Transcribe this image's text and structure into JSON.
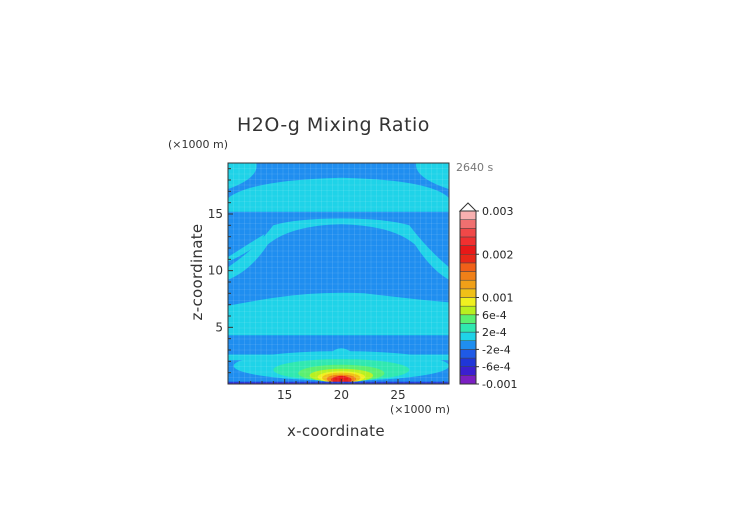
{
  "chart_data": {
    "type": "heatmap",
    "title": "H2O-g Mixing Ratio",
    "time_label": "2640 s",
    "xlabel": "x-coordinate",
    "ylabel": "z-coordinate",
    "x_unit": "(×1000 m)",
    "y_unit": "(×1000 m)",
    "xlim": [
      10,
      29.5
    ],
    "ylim": [
      0,
      19.5
    ],
    "x_ticks": [
      15,
      20,
      25
    ],
    "y_ticks": [
      5,
      10,
      15
    ],
    "colorbar": {
      "levels": [
        -0.001,
        -0.0008,
        -0.0006,
        -0.0004,
        -0.0002,
        0,
        0.0002,
        0.0004,
        0.0006,
        0.0008,
        0.001,
        0.0012,
        0.0014,
        0.0016,
        0.0018,
        0.002,
        0.0022,
        0.0024,
        0.0026,
        0.0028,
        0.003
      ],
      "colors": [
        "#7a1fc2",
        "#3a1fd0",
        "#1f36d8",
        "#1f5ae6",
        "#1f8ef0",
        "#1fd3e8",
        "#2fe8b0",
        "#5af070",
        "#b8f020",
        "#f0f020",
        "#f0c018",
        "#f0a018",
        "#f08018",
        "#f06018",
        "#e82818",
        "#e81818",
        "#f03030",
        "#f04848",
        "#f07070",
        "#f8b0b0"
      ],
      "tick_labels": [
        "0.003",
        "0.002",
        "0.001",
        "6e-4",
        "2e-4",
        "-2e-4",
        "-6e-4",
        "-0.001"
      ],
      "tick_values": [
        0.003,
        0.002,
        0.001,
        0.0006,
        0.0002,
        -0.0002,
        -0.0006,
        -0.001
      ]
    },
    "regions": [
      {
        "field": "background",
        "value": -0.0001
      },
      {
        "field": "upper_green_band",
        "z_range": [
          15.2,
          18.2
        ],
        "value": 0.0001
      },
      {
        "field": "upper_green_corners",
        "z_range": [
          17.5,
          19.5
        ],
        "value": 0.0001
      },
      {
        "field": "mid_green_arch",
        "z_range": [
          9.2,
          14.5
        ],
        "value": 0.0001
      },
      {
        "field": "lower_green_band",
        "z_range": [
          4.3,
          8.1
        ],
        "value": 0.0001
      },
      {
        "field": "green_layer",
        "z_range": [
          2.1,
          2.6
        ],
        "value": 0.0001
      },
      {
        "field": "surface_plume_peak",
        "x": 20,
        "z": 0.5,
        "value": 0.0021
      },
      {
        "field": "surface_dark_blue",
        "z_range": [
          0,
          0.2
        ],
        "value": -0.0005
      }
    ]
  }
}
